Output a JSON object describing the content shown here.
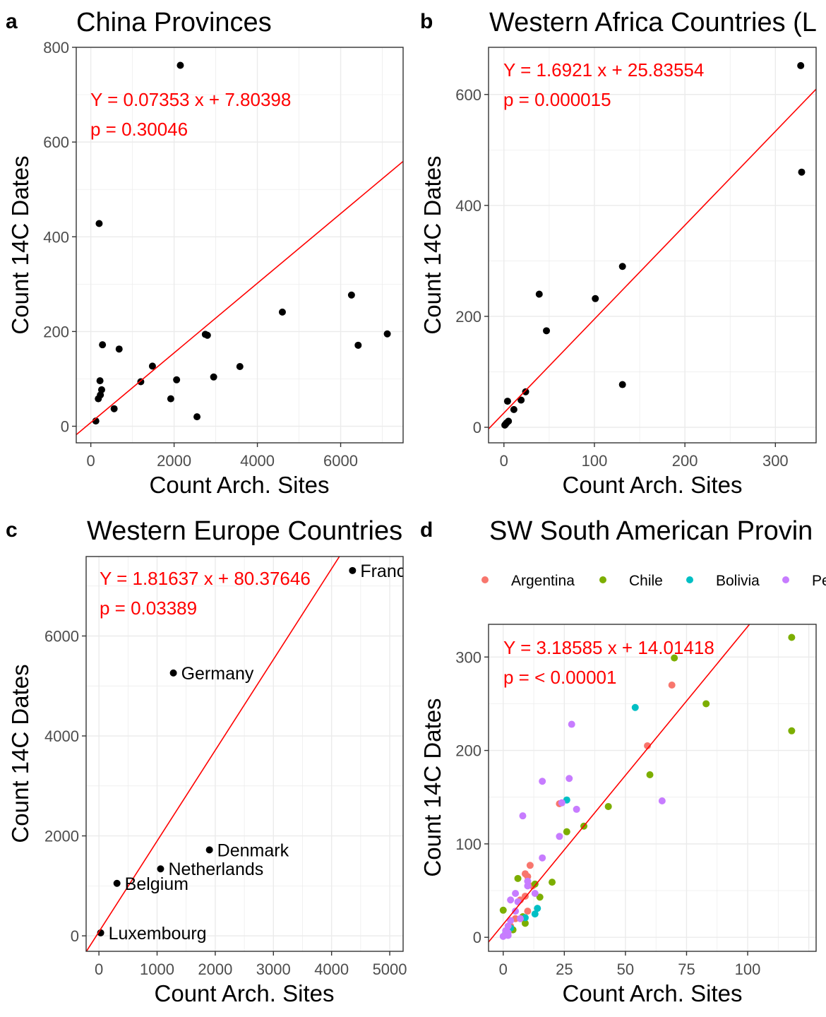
{
  "chart_data": [
    {
      "panel": "a",
      "type": "scatter",
      "title": "China Provinces",
      "xlabel": "Count Arch. Sites",
      "ylabel": "Count 14C Dates",
      "xlim": [
        -350,
        7500
      ],
      "ylim": [
        -35,
        800
      ],
      "xticks": [
        0,
        2000,
        4000,
        6000
      ],
      "yticks": [
        0,
        200,
        400,
        600,
        800
      ],
      "grid": true,
      "fit": {
        "slope": 0.07353,
        "intercept": 7.80398,
        "color": "#ff0000"
      },
      "annotations": [
        "Y =  0.07353 x + 7.80398",
        "p = 0.30046"
      ],
      "points": [
        {
          "x": 2150,
          "y": 762
        },
        {
          "x": 200,
          "y": 428
        },
        {
          "x": 280,
          "y": 172
        },
        {
          "x": 680,
          "y": 163
        },
        {
          "x": 1480,
          "y": 127
        },
        {
          "x": 220,
          "y": 96
        },
        {
          "x": 260,
          "y": 77
        },
        {
          "x": 230,
          "y": 66
        },
        {
          "x": 180,
          "y": 58
        },
        {
          "x": 560,
          "y": 37
        },
        {
          "x": 120,
          "y": 11
        },
        {
          "x": 1200,
          "y": 94
        },
        {
          "x": 1920,
          "y": 58
        },
        {
          "x": 2060,
          "y": 98
        },
        {
          "x": 2550,
          "y": 20
        },
        {
          "x": 2750,
          "y": 194
        },
        {
          "x": 2800,
          "y": 192
        },
        {
          "x": 2950,
          "y": 104
        },
        {
          "x": 3580,
          "y": 126
        },
        {
          "x": 4600,
          "y": 241
        },
        {
          "x": 6260,
          "y": 277
        },
        {
          "x": 6420,
          "y": 171
        },
        {
          "x": 7120,
          "y": 195
        }
      ]
    },
    {
      "panel": "b",
      "type": "scatter",
      "title": "Western Africa Countries (L",
      "xlabel": "Count Arch. Sites",
      "ylabel": "Count 14C Dates",
      "xlim": [
        -17,
        345
      ],
      "ylim": [
        -28,
        685
      ],
      "xticks": [
        0,
        100,
        200,
        300
      ],
      "yticks": [
        0,
        200,
        400,
        600
      ],
      "grid": true,
      "fit": {
        "slope": 1.6921,
        "intercept": 25.83554,
        "color": "#ff0000"
      },
      "annotations": [
        "Y =  1.6921 x + 25.83554",
        "p = 0.000015"
      ],
      "points": [
        {
          "x": 328,
          "y": 652
        },
        {
          "x": 329,
          "y": 460
        },
        {
          "x": 131,
          "y": 290
        },
        {
          "x": 39,
          "y": 240
        },
        {
          "x": 101,
          "y": 232
        },
        {
          "x": 47,
          "y": 174
        },
        {
          "x": 131,
          "y": 77
        },
        {
          "x": 24,
          "y": 64
        },
        {
          "x": 19,
          "y": 49
        },
        {
          "x": 11,
          "y": 32
        },
        {
          "x": 4,
          "y": 47
        },
        {
          "x": 5,
          "y": 11
        },
        {
          "x": 3,
          "y": 8
        },
        {
          "x": 2,
          "y": 6
        },
        {
          "x": 1,
          "y": 4
        }
      ]
    },
    {
      "panel": "c",
      "type": "scatter",
      "title": "Western Europe Countries",
      "xlabel": "Count Arch. Sites",
      "ylabel": "Count 14C Dates",
      "xlim": [
        -220,
        5230
      ],
      "ylim": [
        -310,
        7590
      ],
      "xticks": [
        0,
        1000,
        2000,
        3000,
        4000,
        5000
      ],
      "yticks": [
        0,
        2000,
        4000,
        6000
      ],
      "grid": true,
      "fit": {
        "slope": 1.81637,
        "intercept": 80.37646,
        "color": "#ff0000"
      },
      "annotations": [
        "Y =  1.81637 x + 80.37646",
        "p = 0.03389"
      ],
      "points": [
        {
          "x": 4360,
          "y": 7310,
          "label": "France"
        },
        {
          "x": 1280,
          "y": 5260,
          "label": "Germany"
        },
        {
          "x": 1900,
          "y": 1720,
          "label": "Denmark"
        },
        {
          "x": 1060,
          "y": 1340,
          "label": "Netherlands"
        },
        {
          "x": 310,
          "y": 1050,
          "label": "Belgium"
        },
        {
          "x": 30,
          "y": 60,
          "label": "Luxembourg"
        }
      ]
    },
    {
      "panel": "d",
      "type": "scatter",
      "title": "SW South American Provin",
      "xlabel": "Count Arch. Sites",
      "ylabel": "Count 14C Dates",
      "xlim": [
        -6,
        128
      ],
      "ylim": [
        -15,
        335
      ],
      "xticks": [
        0,
        25,
        50,
        75,
        100
      ],
      "yticks": [
        0,
        100,
        200,
        300
      ],
      "grid": true,
      "fit": {
        "slope": 3.18585,
        "intercept": 14.01418,
        "color": "#ff0000"
      },
      "annotations": [
        "Y =  3.18585 x + 14.01418",
        "p = < 0.00001"
      ],
      "legend_position": "top",
      "series": [
        {
          "name": "Argentina",
          "color": "#f8766d",
          "points": [
            {
              "x": 69,
              "y": 270
            },
            {
              "x": 59,
              "y": 205
            },
            {
              "x": 23,
              "y": 143
            },
            {
              "x": 11,
              "y": 77
            },
            {
              "x": 9,
              "y": 68
            },
            {
              "x": 10,
              "y": 65
            },
            {
              "x": 12,
              "y": 55
            },
            {
              "x": 9,
              "y": 44
            },
            {
              "x": 7,
              "y": 40
            },
            {
              "x": 10,
              "y": 28
            },
            {
              "x": 5,
              "y": 20
            },
            {
              "x": 3,
              "y": 12
            },
            {
              "x": 2,
              "y": 6
            },
            {
              "x": 1,
              "y": 3
            }
          ]
        },
        {
          "name": "Chile",
          "color": "#7cae00",
          "points": [
            {
              "x": 118,
              "y": 321
            },
            {
              "x": 70,
              "y": 299
            },
            {
              "x": 83,
              "y": 250
            },
            {
              "x": 118,
              "y": 221
            },
            {
              "x": 60,
              "y": 174
            },
            {
              "x": 43,
              "y": 140
            },
            {
              "x": 33,
              "y": 119
            },
            {
              "x": 26,
              "y": 113
            },
            {
              "x": 20,
              "y": 59
            },
            {
              "x": 6,
              "y": 63
            },
            {
              "x": 13,
              "y": 57
            },
            {
              "x": 15,
              "y": 43
            },
            {
              "x": 8,
              "y": 22
            },
            {
              "x": 9,
              "y": 15
            },
            {
              "x": 0,
              "y": 29
            },
            {
              "x": 4,
              "y": 8
            },
            {
              "x": 1,
              "y": 4
            }
          ]
        },
        {
          "name": "Bolivia",
          "color": "#00bfc4",
          "points": [
            {
              "x": 54,
              "y": 246
            },
            {
              "x": 26,
              "y": 147
            },
            {
              "x": 14,
              "y": 31
            },
            {
              "x": 13,
              "y": 25
            },
            {
              "x": 9,
              "y": 21
            },
            {
              "x": 3,
              "y": 10
            },
            {
              "x": 1,
              "y": 4
            }
          ]
        },
        {
          "name": "Pe",
          "color": "#c77cff",
          "points": [
            {
              "x": 28,
              "y": 228
            },
            {
              "x": 27,
              "y": 170
            },
            {
              "x": 16,
              "y": 167
            },
            {
              "x": 65,
              "y": 146
            },
            {
              "x": 24,
              "y": 144
            },
            {
              "x": 30,
              "y": 137
            },
            {
              "x": 8,
              "y": 130
            },
            {
              "x": 23,
              "y": 108
            },
            {
              "x": 16,
              "y": 85
            },
            {
              "x": 10,
              "y": 60
            },
            {
              "x": 10,
              "y": 55
            },
            {
              "x": 13,
              "y": 47
            },
            {
              "x": 5,
              "y": 47
            },
            {
              "x": 6,
              "y": 38
            },
            {
              "x": 3,
              "y": 40
            },
            {
              "x": 5,
              "y": 28
            },
            {
              "x": 7,
              "y": 20
            },
            {
              "x": 3,
              "y": 18
            },
            {
              "x": 2,
              "y": 12
            },
            {
              "x": 1,
              "y": 7
            },
            {
              "x": 2,
              "y": 5
            },
            {
              "x": 1,
              "y": 3
            },
            {
              "x": 2,
              "y": 2
            },
            {
              "x": 0,
              "y": 1
            }
          ]
        }
      ]
    }
  ]
}
